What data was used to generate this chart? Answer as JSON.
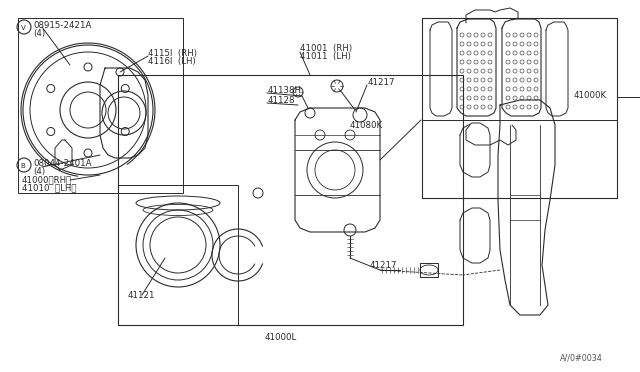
{
  "bg_color": "#ffffff",
  "fig_width": 6.4,
  "fig_height": 3.72,
  "lc": "#2a2a2a",
  "watermark": "A//0#0034",
  "labels": {
    "v_circle": "V",
    "v_part": "08915-2421A",
    "v_qty": "(4)",
    "b_circle": "B",
    "b_part": "08044-2401A",
    "b_qty": "(4)",
    "rotor_rh": "4115l  (RH)",
    "rotor_lh": "4116l  (LH)",
    "caliper_rh": "41000〈RH〉",
    "caliper_lh": "41010  〈LH〉",
    "main_rh": "41001  (RH)",
    "main_lh": "41011  (LH)",
    "bleed": "41138H",
    "bleeder_bolt": "41128",
    "pin_top": "41217",
    "pin_bot": "41217",
    "piston": "41121",
    "assy": "41000L",
    "pad_kit": "41080K",
    "pad_assy": "41000K"
  }
}
